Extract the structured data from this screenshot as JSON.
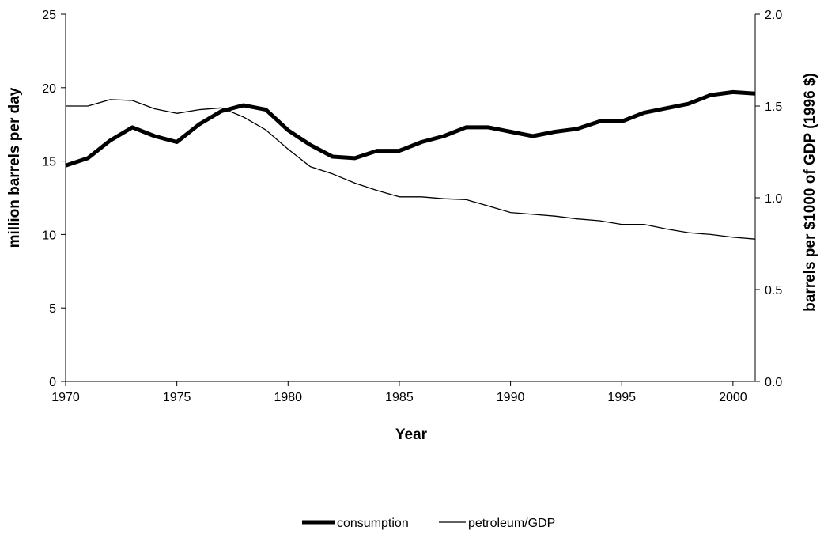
{
  "chart_data": {
    "type": "line",
    "title": "",
    "xlabel": "Year",
    "ylabel": "million barrels per day",
    "y2label": "barrels per $1000 of GDP (1996 $)",
    "xlim": [
      1970,
      2001
    ],
    "ylim": [
      0,
      25
    ],
    "y2lim": [
      0,
      2.0
    ],
    "x_ticks": [
      "1970",
      "1975",
      "1980",
      "1985",
      "1990",
      "1995",
      "2000"
    ],
    "y_ticks": [
      "0",
      "5",
      "10",
      "15",
      "20",
      "25"
    ],
    "y2_ticks": [
      "0.0",
      "0.5",
      "1.0",
      "1.5",
      "2.0"
    ],
    "grid": false,
    "legend_position": "bottom-center",
    "x": [
      1970,
      1971,
      1972,
      1973,
      1974,
      1975,
      1976,
      1977,
      1978,
      1979,
      1980,
      1981,
      1982,
      1983,
      1984,
      1985,
      1986,
      1987,
      1988,
      1989,
      1990,
      1991,
      1992,
      1993,
      1994,
      1995,
      1996,
      1997,
      1998,
      1999,
      2000,
      2001
    ],
    "series": [
      {
        "name": "consumption",
        "axis": "left",
        "color": "#000000",
        "style": "thick",
        "values": [
          14.7,
          15.2,
          16.4,
          17.3,
          16.7,
          16.3,
          17.5,
          18.4,
          18.8,
          18.5,
          17.1,
          16.1,
          15.3,
          15.2,
          15.7,
          15.7,
          16.3,
          16.7,
          17.3,
          17.3,
          17.0,
          16.7,
          17.0,
          17.2,
          17.7,
          17.7,
          18.3,
          18.6,
          18.9,
          19.5,
          19.7,
          19.6
        ]
      },
      {
        "name": "petroleum/GDP",
        "axis": "right",
        "color": "#000000",
        "style": "thin",
        "values": [
          1.5,
          1.5,
          1.535,
          1.53,
          1.485,
          1.46,
          1.48,
          1.49,
          1.44,
          1.37,
          1.265,
          1.17,
          1.13,
          1.08,
          1.04,
          1.005,
          1.005,
          0.995,
          0.99,
          0.955,
          0.92,
          0.91,
          0.9,
          0.885,
          0.875,
          0.855,
          0.855,
          0.83,
          0.81,
          0.8,
          0.785,
          0.775
        ]
      }
    ]
  }
}
